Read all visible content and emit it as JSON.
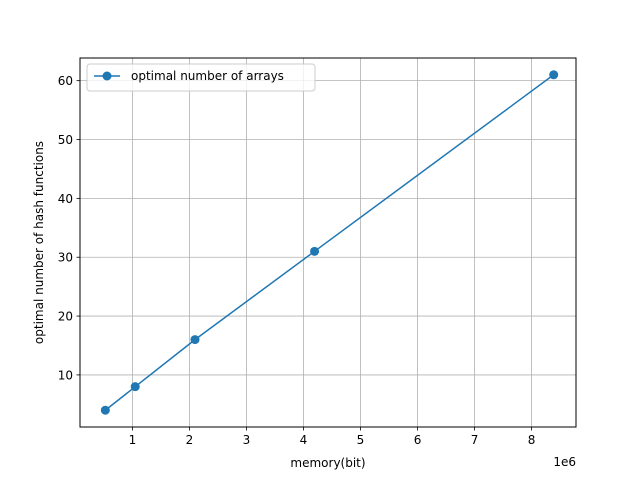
{
  "chart_data": {
    "type": "line",
    "title": "",
    "xlabel": "memory(bit)",
    "ylabel": "optimal number of hash functions",
    "x_offset_label": "1e6",
    "xlim": [
      0.08,
      8.78
    ],
    "ylim": [
      1.15,
      63.85
    ],
    "xticks": [
      1,
      2,
      3,
      4,
      5,
      6,
      7,
      8
    ],
    "yticks": [
      10,
      20,
      30,
      40,
      50,
      60
    ],
    "grid": true,
    "legend_position": "top-left",
    "series": [
      {
        "name": "optimal number of arrays",
        "color": "#1f77b4",
        "marker": "circle",
        "x": [
          0.524288,
          1.048576,
          2.097152,
          4.194304,
          8.388608
        ],
        "y": [
          4,
          8,
          16,
          31,
          61
        ]
      }
    ]
  }
}
